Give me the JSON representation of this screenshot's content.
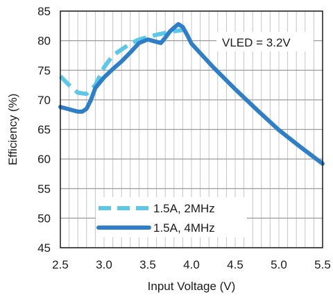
{
  "chart_data": {
    "type": "line",
    "title": "",
    "xlabel": "Input Voltage (V)",
    "ylabel": "Efficiency (%)",
    "xlim": [
      2.5,
      5.5
    ],
    "ylim": [
      45,
      85
    ],
    "x_ticks": [
      "2.5",
      "3.0",
      "3.5",
      "4.0",
      "4.5",
      "5.0",
      "5.5"
    ],
    "y_ticks": [
      "45",
      "50",
      "55",
      "60",
      "65",
      "70",
      "75",
      "80",
      "85"
    ],
    "grid": true,
    "legend_position": "bottom-left",
    "annotation": "VLED = 3.2V",
    "series": [
      {
        "name": "1.5A, 2MHz",
        "style": "dashed",
        "color": "#5BC8EA",
        "x": [
          2.5,
          2.6,
          2.7,
          2.8,
          2.9,
          3.0,
          3.1,
          3.2,
          3.3,
          3.4,
          3.5,
          3.6,
          3.7,
          3.8,
          3.9
        ],
        "y": [
          74.0,
          72.5,
          71.2,
          71.0,
          72.5,
          75.5,
          77.5,
          78.5,
          79.5,
          80.2,
          80.6,
          81.0,
          81.3,
          81.6,
          81.8
        ]
      },
      {
        "name": "1.5A, 4MHz",
        "style": "solid",
        "color": "#2E7EC8",
        "x": [
          2.5,
          2.6,
          2.7,
          2.75,
          2.8,
          2.85,
          2.9,
          3.0,
          3.1,
          3.2,
          3.3,
          3.4,
          3.5,
          3.6,
          3.65,
          3.7,
          3.75,
          3.8,
          3.85,
          3.9,
          3.95,
          4.0,
          4.25,
          4.5,
          4.75,
          5.0,
          5.25,
          5.5
        ],
        "y": [
          68.8,
          68.4,
          68.0,
          68.0,
          68.5,
          70.0,
          72.0,
          73.8,
          75.2,
          76.5,
          78.0,
          79.6,
          80.2,
          79.8,
          79.6,
          80.5,
          81.5,
          82.2,
          82.8,
          82.3,
          81.0,
          79.5,
          75.5,
          71.8,
          68.3,
          64.9,
          62.0,
          59.2
        ]
      }
    ]
  }
}
